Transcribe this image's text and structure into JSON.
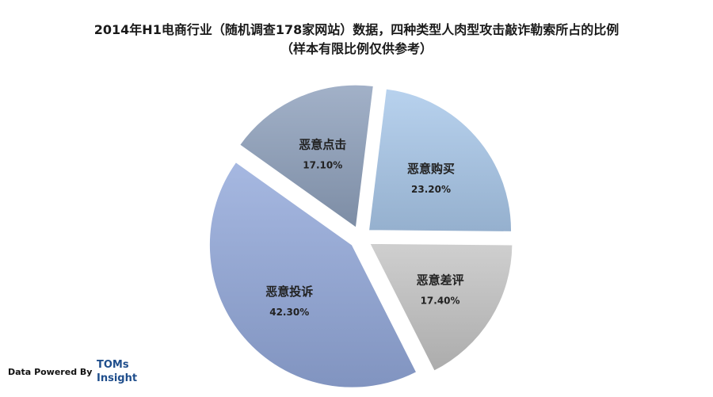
{
  "chart_data": {
    "type": "pie",
    "title": "2014年H1电商行业（随机调查178家网站）数据，四种类型人肉型攻击敲诈勒索所占的比例",
    "subtitle": "（样本有限比例仅供参考）",
    "slices": [
      {
        "label": "恶意购买",
        "value": 23.2,
        "display": "23.20%",
        "color": "#a9c8ea"
      },
      {
        "label": "恶意差评",
        "value": 17.4,
        "display": "17.40%",
        "color": "#c4c4c4"
      },
      {
        "label": "恶意投诉",
        "value": 42.3,
        "display": "42.30%",
        "color": "#93a8da"
      },
      {
        "label": "恶意点击",
        "value": 17.1,
        "display": "17.10%",
        "color": "#8ea0bc"
      }
    ]
  },
  "footer": {
    "credit": "Data Powered By",
    "logo_line1": "TOMs",
    "logo_line2": "Insight"
  }
}
